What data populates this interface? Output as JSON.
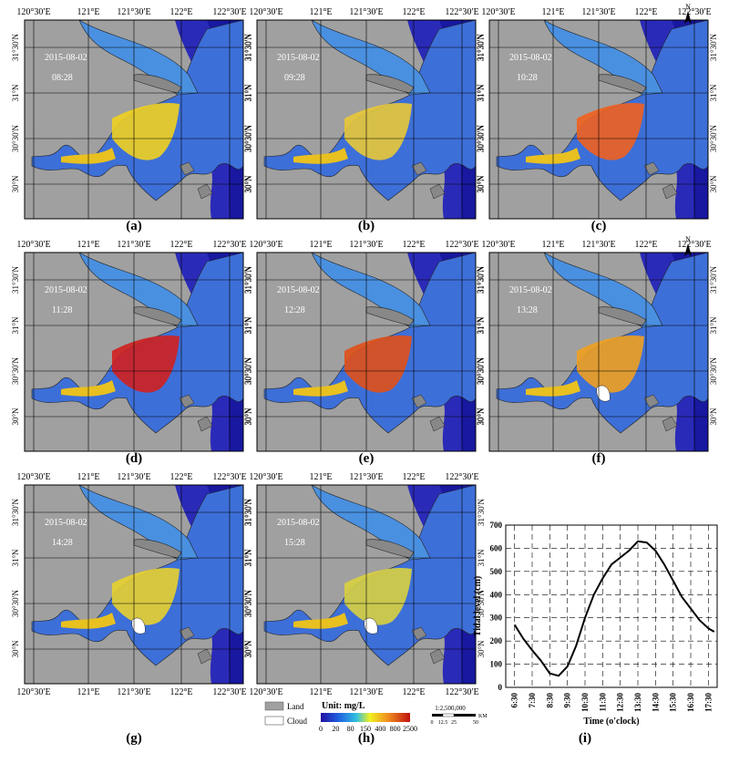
{
  "figure": {
    "lon_ticks": [
      "120°30′E",
      "121°E",
      "121°30′E",
      "122°E",
      "122°30′E"
    ],
    "lat_ticks": [
      "31°30′N",
      "31°N",
      "30°30′N",
      "30°N"
    ],
    "north_label": "N",
    "panels": [
      {
        "letter": "(a)",
        "date": "2015-08-02",
        "time": "08:28"
      },
      {
        "letter": "(b)",
        "date": "2015-08-02",
        "time": "09:28"
      },
      {
        "letter": "(c)",
        "date": "2015-08-02",
        "time": "10:28"
      },
      {
        "letter": "(d)",
        "date": "2015-08-02",
        "time": "11:28"
      },
      {
        "letter": "(e)",
        "date": "2015-08-02",
        "time": "12:28"
      },
      {
        "letter": "(f)",
        "date": "2015-08-02",
        "time": "13:28"
      },
      {
        "letter": "(g)",
        "date": "2015-08-02",
        "time": "14:28"
      },
      {
        "letter": "(h)",
        "date": "2015-08-02",
        "time": "15:28"
      }
    ],
    "chart_letter": "(i)"
  },
  "legend": {
    "land_label": "Land",
    "cloud_label": "Cloud",
    "unit_label": "Unit:  mg/L",
    "scale_values": [
      "0",
      "20",
      "80",
      "150",
      "400",
      "800",
      "2500"
    ],
    "scale_ratio": "1:2,500,000",
    "scale_unit": "KM",
    "scale_ticks": [
      "0",
      "12.5",
      "25",
      "50"
    ],
    "colors": {
      "land": "#a0a0a0",
      "cloud": "#ffffff",
      "low": "#1a1aa8",
      "mid": "#f0e020",
      "high": "#c01010"
    }
  },
  "chart_data": {
    "type": "line",
    "xlabel": "Time (o'clock)",
    "ylabel": "Tidal  level (cm)",
    "x_ticks": [
      "6:30",
      "7:30",
      "8:30",
      "9:30",
      "10:30",
      "11:30",
      "12:30",
      "13:30",
      "14:30",
      "15:30",
      "16:30",
      "17:30"
    ],
    "y_ticks": [
      "0",
      "100",
      "200",
      "300",
      "400",
      "500",
      "600",
      "700"
    ],
    "ylim": [
      0,
      700
    ],
    "grid": true,
    "series": [
      {
        "x": [
          "6:30",
          "7:00",
          "7:30",
          "8:00",
          "8:30",
          "9:00",
          "9:30",
          "10:00",
          "10:30",
          "11:00",
          "11:30",
          "12:00",
          "12:30",
          "13:00",
          "13:30",
          "14:00",
          "14:30",
          "15:00",
          "15:30",
          "16:00",
          "16:30",
          "17:00",
          "17:30",
          "17:50"
        ],
        "values": [
          270,
          210,
          160,
          115,
          60,
          50,
          90,
          180,
          300,
          400,
          470,
          530,
          560,
          590,
          630,
          625,
          590,
          530,
          460,
          390,
          340,
          290,
          255,
          240
        ]
      }
    ]
  }
}
